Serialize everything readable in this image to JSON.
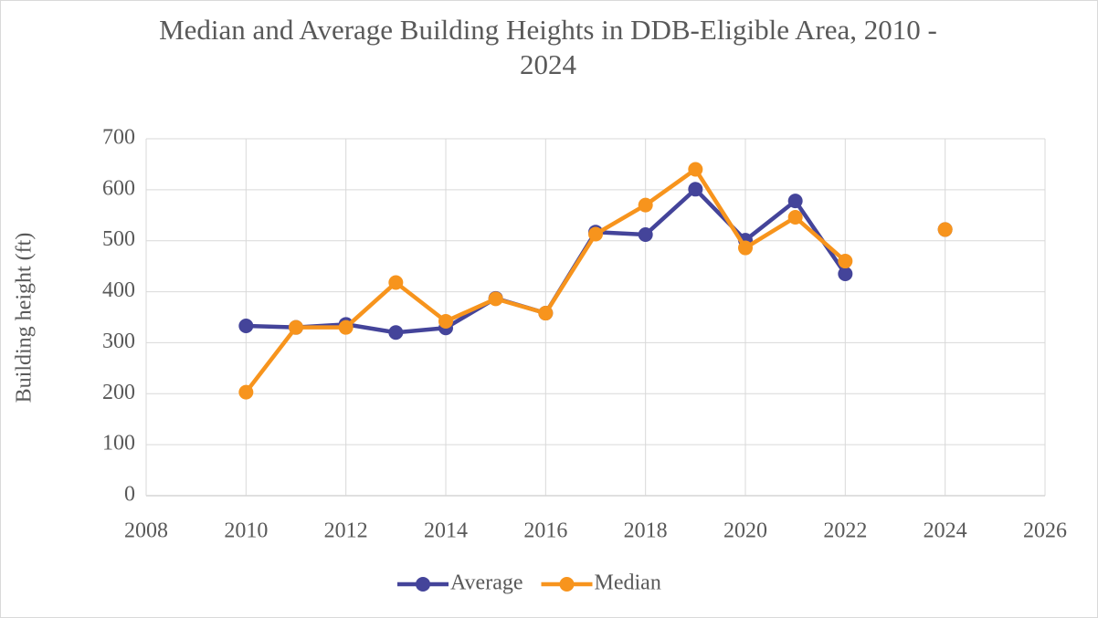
{
  "chart_data": {
    "type": "line",
    "title": "Median and Average Building Heights in DDB-Eligible Area, 2010 - 2024",
    "y_label": "Building height (ft)",
    "x": [
      2010,
      2011,
      2012,
      2013,
      2014,
      2015,
      2016,
      2017,
      2018,
      2019,
      2020,
      2021,
      2022,
      2023,
      2024
    ],
    "series": [
      {
        "name": "Average",
        "color": "#44449a",
        "values": [
          333,
          330,
          336,
          320,
          329,
          387,
          358,
          517,
          512,
          601,
          501,
          578,
          435,
          null,
          522
        ]
      },
      {
        "name": "Median",
        "color": "#f7941d",
        "values": [
          203,
          330,
          330,
          418,
          342,
          386,
          358,
          513,
          570,
          640,
          486,
          546,
          460,
          null,
          522
        ]
      }
    ],
    "xlim": [
      2008,
      2026
    ],
    "xticks": [
      2008,
      2010,
      2012,
      2014,
      2016,
      2018,
      2020,
      2022,
      2024,
      2026
    ],
    "ylim": [
      0,
      700
    ],
    "yticks": [
      0,
      100,
      200,
      300,
      400,
      500,
      600,
      700
    ],
    "grid": true,
    "legend": "bottom"
  }
}
